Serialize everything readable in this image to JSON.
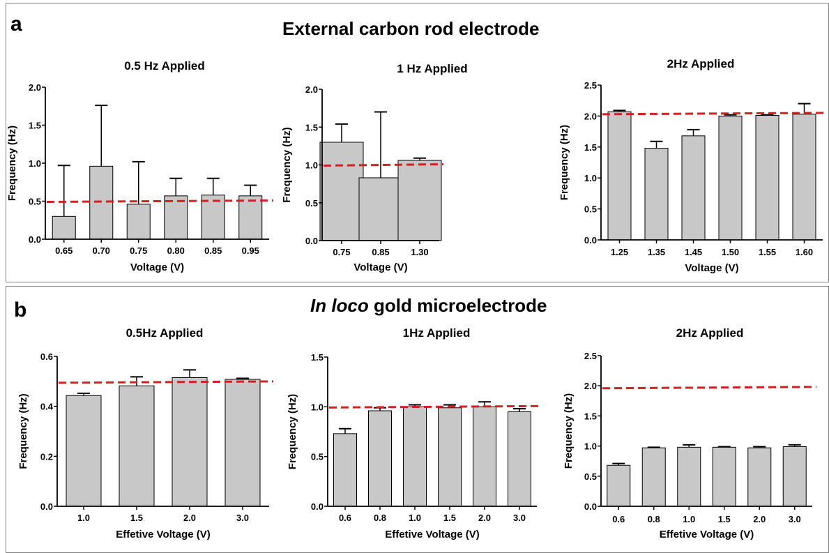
{
  "colors": {
    "bar_fill": "#c8c8c8",
    "bar_stroke": "#000000",
    "reference_line": "#d42020",
    "frame": "#7f7f7f"
  },
  "panel_a": {
    "letter": "a",
    "title": "External carbon rod electrode"
  },
  "panel_b": {
    "letter": "b",
    "title_italic": "In loco",
    "title_rest": " gold microelectrode"
  },
  "chart_data": [
    {
      "type": "bar",
      "title": "0.5 Hz Applied",
      "xlabel": "Voltage (V)",
      "ylabel": "Frequency (Hz)",
      "categories": [
        "0.65",
        "0.70",
        "0.75",
        "0.80",
        "0.85",
        "0.95"
      ],
      "values": [
        0.3,
        0.96,
        0.46,
        0.57,
        0.58,
        0.57
      ],
      "error_upper": [
        0.97,
        1.76,
        1.02,
        0.8,
        0.8,
        0.71
      ],
      "ylim": [
        0,
        2.0
      ],
      "yticks": [
        "0.0",
        "0.5",
        "1.0",
        "1.5",
        "2.0"
      ],
      "reference_line": {
        "style": "dashed",
        "value": 0.5
      }
    },
    {
      "type": "bar",
      "title": "1 Hz Applied",
      "xlabel": "Voltage (V)",
      "ylabel": "Frequency (Hz)",
      "categories": [
        "0.75",
        "0.85",
        "1.30"
      ],
      "values": [
        1.3,
        0.83,
        1.06
      ],
      "error_upper": [
        1.54,
        1.7,
        1.09
      ],
      "ylim": [
        0,
        2.0
      ],
      "yticks": [
        "0.0",
        "0.5",
        "1.0",
        "1.5",
        "2.0"
      ],
      "reference_line": {
        "style": "dashed",
        "value": 1.0
      }
    },
    {
      "type": "bar",
      "title": "2Hz Applied",
      "xlabel": "Voltage (V)",
      "ylabel": "Frequency (Hz)",
      "categories": [
        "1.25",
        "1.35",
        "1.45",
        "1.50",
        "1.55",
        "1.60"
      ],
      "values": [
        2.07,
        1.48,
        1.68,
        2.0,
        2.01,
        2.03
      ],
      "error_upper": [
        2.09,
        1.59,
        1.78,
        2.02,
        2.02,
        2.2
      ],
      "ylim": [
        0,
        2.5
      ],
      "yticks": [
        "0.0",
        "0.5",
        "1.0",
        "1.5",
        "2.0",
        "2.5"
      ],
      "reference_line": {
        "style": "dashed",
        "value": 2.04
      }
    },
    {
      "type": "bar",
      "title": "0.5Hz Applied",
      "xlabel": "Effetive Voltage (V)",
      "ylabel": "Frequency (Hz)",
      "categories": [
        "1.0",
        "1.5",
        "2.0",
        "3.0"
      ],
      "values": [
        0.443,
        0.482,
        0.515,
        0.508
      ],
      "error_upper": [
        0.452,
        0.518,
        0.546,
        0.512
      ],
      "ylim": [
        0,
        0.6
      ],
      "yticks": [
        "0.0",
        "0.2",
        "0.4",
        "0.6"
      ],
      "reference_line": {
        "style": "dashed",
        "value": 0.497
      }
    },
    {
      "type": "bar",
      "title": "1Hz Applied",
      "xlabel": "Effetive Voltage (V)",
      "ylabel": "Frequency (Hz)",
      "categories": [
        "0.6",
        "0.8",
        "1.0",
        "1.5",
        "2.0",
        "3.0"
      ],
      "values": [
        0.73,
        0.96,
        1.0,
        0.99,
        1.0,
        0.95
      ],
      "error_upper": [
        0.78,
        0.99,
        1.02,
        1.02,
        1.05,
        0.98
      ],
      "ylim": [
        0,
        1.5
      ],
      "yticks": [
        "0.0",
        "0.5",
        "1.0",
        "1.5"
      ],
      "reference_line": {
        "style": "dashed",
        "value": 1.0
      }
    },
    {
      "type": "bar",
      "title": "2Hz Applied",
      "xlabel": "Effetive Voltage (V)",
      "ylabel": "Frequency (Hz)",
      "categories": [
        "0.6",
        "0.8",
        "1.0",
        "1.5",
        "2.0",
        "3.0"
      ],
      "values": [
        0.68,
        0.97,
        0.98,
        0.98,
        0.97,
        0.99
      ],
      "error_upper": [
        0.71,
        0.98,
        1.02,
        0.99,
        0.99,
        1.02
      ],
      "ylim": [
        0,
        2.5
      ],
      "yticks": [
        "0.0",
        "0.5",
        "1.0",
        "1.5",
        "2.0",
        "2.5"
      ],
      "reference_line": {
        "style": "dashed",
        "value": 1.97
      }
    }
  ]
}
